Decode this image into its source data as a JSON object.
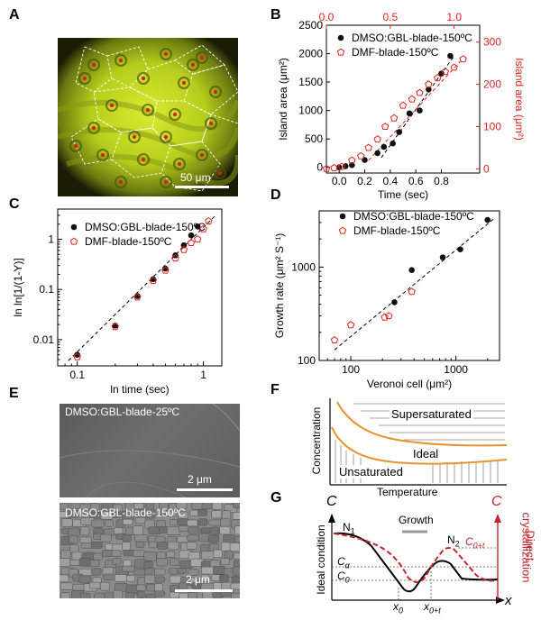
{
  "panels": {
    "A": "A",
    "B": "B",
    "C": "C",
    "D": "D",
    "E": "E",
    "F": "F",
    "G": "G"
  },
  "panel_a": {
    "scalebar_label": "50 μm"
  },
  "panel_e": {
    "top_label": "DMSO:GBL-blade-25ºC",
    "top_scalebar": "2 μm",
    "bottom_label": "DMSO:GBL-blade-150ºC",
    "bottom_scalebar": "2 μm"
  },
  "panel_f": {
    "ylabel": "Concentration",
    "xlabel": "Temperature",
    "label_super": "Supersaturated",
    "label_ideal": "Ideal",
    "label_unsat": "Unsaturated",
    "colors": {
      "curve": "#e8922e",
      "hatch": "#888888"
    }
  },
  "panel_g": {
    "y_axis_label": "C",
    "right_axis_label": "C",
    "x_axis_label": "x",
    "left_vertical_label": "Ideal condition",
    "right_vertical_label_1": "Direct",
    "right_vertical_label_2": "crystallization",
    "N1": "N",
    "N1_sub": "1",
    "N2": "N",
    "N2_sub": "2",
    "growth": "Growth",
    "c_alpha": "C",
    "c_alpha_sub": "α",
    "c_0": "C",
    "c_0_sub": "0",
    "c_0t": "C",
    "c_0t_sub": "0+t",
    "x_0": "x",
    "x_0_sub": "0",
    "x_0t": "x",
    "x_0t_sub": "0+t",
    "colors": {
      "solid": "#000000",
      "dashed": "#c0272d",
      "growth_bar": "#999999"
    }
  },
  "chart_data": [
    {
      "id": "B",
      "type": "scatter",
      "xlabel": "Time (sec)",
      "ylabel": "Island area (μm²)",
      "y2label": "Island area (μm²)",
      "xlim": [
        -0.1,
        1.1
      ],
      "ylim": [
        -100,
        2500
      ],
      "x2lim": [
        0,
        1.2
      ],
      "y2lim": [
        -10,
        340
      ],
      "xticks": [
        0.0,
        0.2,
        0.4,
        0.6,
        0.8
      ],
      "yticks": [
        0,
        500,
        1000,
        1500,
        2000,
        2500
      ],
      "x2ticks": [
        0.0,
        0.5,
        1.0
      ],
      "y2ticks": [
        0,
        100,
        200,
        300
      ],
      "series": [
        {
          "name": "DMSO:GBL-blade-150ºC",
          "axis": "left",
          "color": "#000000",
          "marker": "ball",
          "x": [
            0.0,
            0.05,
            0.1,
            0.2,
            0.3,
            0.35,
            0.42,
            0.47,
            0.55,
            0.63,
            0.7,
            0.8,
            0.87
          ],
          "y": [
            0,
            20,
            40,
            130,
            250,
            360,
            420,
            620,
            950,
            1000,
            1370,
            1650,
            1960
          ]
        },
        {
          "name": "DMF-blade-150ºC",
          "axis": "right",
          "color": "#e0241c",
          "marker": "pentagon",
          "x": [
            0.0,
            0.06,
            0.12,
            0.2,
            0.27,
            0.33,
            0.4,
            0.46,
            0.53,
            0.6,
            0.67,
            0.73,
            0.8,
            0.87,
            0.93,
            1.0,
            1.07
          ],
          "y": [
            0,
            2,
            5,
            20,
            30,
            50,
            70,
            100,
            120,
            150,
            165,
            180,
            200,
            215,
            230,
            240,
            260
          ]
        }
      ]
    },
    {
      "id": "C",
      "type": "scatter",
      "xlabel": "ln time (sec)",
      "ylabel": "ln ln[1/(1-Y)]",
      "xscale": "log",
      "yscale": "log",
      "xlim": [
        0.07,
        1.4
      ],
      "ylim": [
        0.003,
        4
      ],
      "xticks": [
        0.1,
        1
      ],
      "yticks": [
        0.01,
        0.1,
        1
      ],
      "series": [
        {
          "name": "DMSO:GBL-blade-150ºC",
          "color": "#000000",
          "marker": "ball",
          "x": [
            0.1,
            0.2,
            0.3,
            0.4,
            0.5,
            0.6,
            0.7,
            0.8,
            0.9
          ],
          "y": [
            0.005,
            0.019,
            0.074,
            0.16,
            0.26,
            0.48,
            0.76,
            1.2,
            1.8
          ]
        },
        {
          "name": "DMF-blade-150ºC",
          "color": "#e0241c",
          "marker": "pentagon",
          "x": [
            0.1,
            0.2,
            0.3,
            0.4,
            0.5,
            0.6,
            0.7,
            0.8,
            0.9,
            1.0,
            1.1
          ],
          "y": [
            0.0045,
            0.018,
            0.07,
            0.15,
            0.24,
            0.42,
            0.62,
            0.85,
            1.0,
            1.6,
            2.3
          ]
        }
      ]
    },
    {
      "id": "D",
      "type": "scatter",
      "xlabel": "Veronoi cell (μm²)",
      "ylabel": "Growth rate (μm² S⁻¹)",
      "xscale": "log",
      "yscale": "log",
      "xlim": [
        50,
        2600
      ],
      "ylim": [
        100,
        4000
      ],
      "xticks": [
        100,
        1000
      ],
      "yticks": [
        100,
        1000
      ],
      "series": [
        {
          "name": "DMSO:GBL-blade-150ºC",
          "color": "#000000",
          "marker": "ball",
          "x": [
            260,
            380,
            750,
            1100,
            2000
          ],
          "y": [
            420,
            930,
            1270,
            1550,
            3200
          ]
        },
        {
          "name": "DMF-blade-150ºC",
          "color": "#e0241c",
          "marker": "pentagon",
          "x": [
            70,
            100,
            210,
            230,
            380
          ],
          "y": [
            165,
            240,
            290,
            300,
            545
          ]
        }
      ]
    }
  ]
}
